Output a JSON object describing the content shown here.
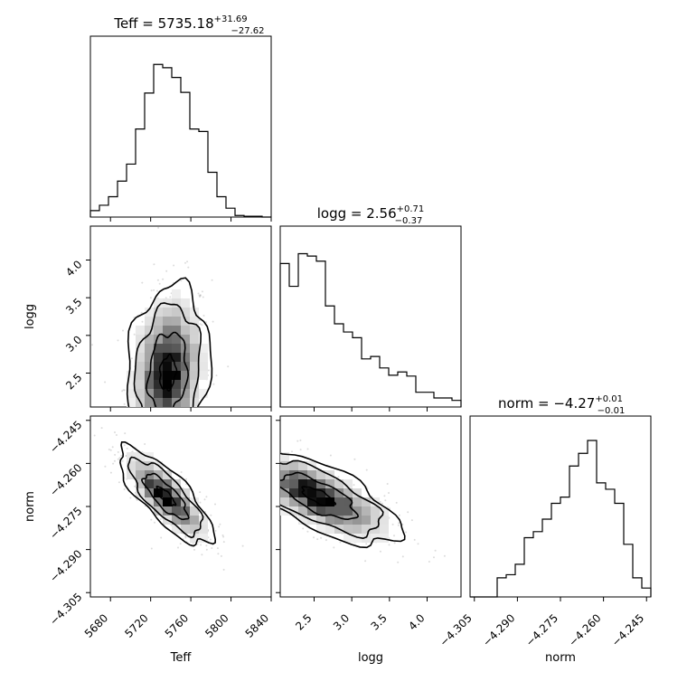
{
  "chart_data": {
    "type": "corner",
    "parameters": [
      {
        "name": "Teff",
        "axis_label": "Teff",
        "title_prefix": "Teff = ",
        "median": "5735.18",
        "err_plus": "+31.69",
        "err_minus": "−27.62",
        "range": [
          5660,
          5840
        ],
        "ticks": [
          5680,
          5720,
          5760,
          5800,
          5840
        ],
        "tick_labels": [
          "5680",
          "5720",
          "5760",
          "5800",
          "5840"
        ]
      },
      {
        "name": "logg",
        "axis_label": "logg",
        "title_prefix": "logg = ",
        "median": "2.56",
        "err_plus": "+0.71",
        "err_minus": "−0.37",
        "range": [
          2.05,
          4.45
        ],
        "ticks": [
          2.5,
          3.0,
          3.5,
          4.0
        ],
        "tick_labels": [
          "2.5",
          "3.0",
          "3.5",
          "4.0"
        ]
      },
      {
        "name": "norm",
        "axis_label": "norm",
        "title_prefix": "norm = −",
        "median": "4.27",
        "err_plus": "+0.01",
        "err_minus": "−0.01",
        "range": [
          -4.3065,
          -4.2435
        ],
        "ticks": [
          -4.305,
          -4.29,
          -4.275,
          -4.26,
          -4.245
        ],
        "tick_labels": [
          "−4.305",
          "−4.290",
          "−4.275",
          "−4.260",
          "−4.245"
        ]
      }
    ],
    "histograms": {
      "Teff": [
        0.037,
        0.068,
        0.117,
        0.207,
        0.305,
        0.507,
        0.714,
        0.879,
        0.86,
        0.804,
        0.718,
        0.507,
        0.493,
        0.258,
        0.117,
        0.051,
        0.009,
        0.005,
        0.005,
        0.0
      ],
      "logg": [
        0.826,
        0.695,
        0.883,
        0.869,
        0.84,
        0.582,
        0.479,
        0.432,
        0.399,
        0.277,
        0.291,
        0.225,
        0.183,
        0.202,
        0.178,
        0.085,
        0.085,
        0.052,
        0.052,
        0.038
      ],
      "norm": [
        0.0,
        0.0,
        0.0,
        0.11,
        0.128,
        0.188,
        0.341,
        0.376,
        0.448,
        0.539,
        0.575,
        0.754,
        0.827,
        0.901,
        0.657,
        0.62,
        0.539,
        0.303,
        0.11,
        0.051
      ]
    },
    "grid": false
  }
}
